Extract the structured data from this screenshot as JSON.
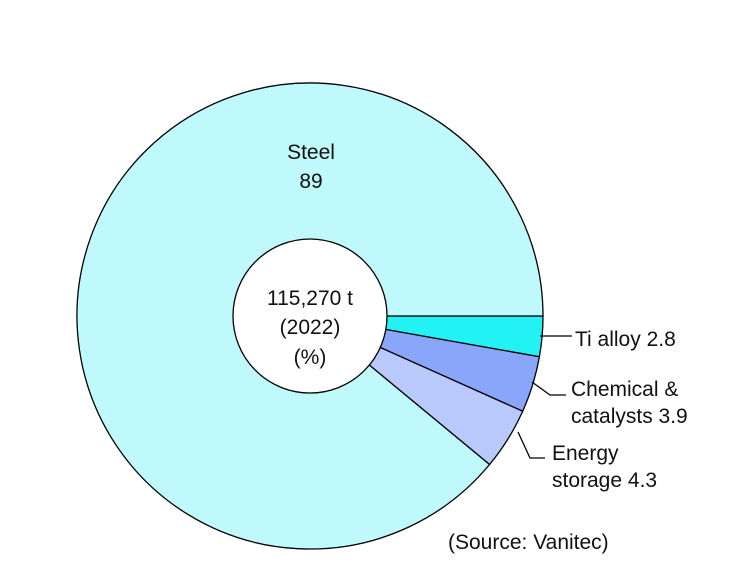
{
  "chart_data": {
    "type": "pie",
    "style": "donut",
    "total_label": "115,270 t",
    "year_label": "(2022)",
    "unit_label": "(%)",
    "slices": [
      {
        "name": "Steel",
        "value_label": "89",
        "value": 89.0,
        "color": "#bff9fb"
      },
      {
        "name": "Ti alloy",
        "value_label": "2.8",
        "value": 2.8,
        "color": "#22f2f4"
      },
      {
        "name": "Chemical &",
        "name2": "catalysts",
        "value_label": "3.9",
        "value": 3.9,
        "color": "#8aa6fb"
      },
      {
        "name": "Energy",
        "name2": "storage",
        "value_label": "4.3",
        "value": 4.3,
        "color": "#bac9fb"
      }
    ],
    "source": "(Source: Vanitec)"
  }
}
